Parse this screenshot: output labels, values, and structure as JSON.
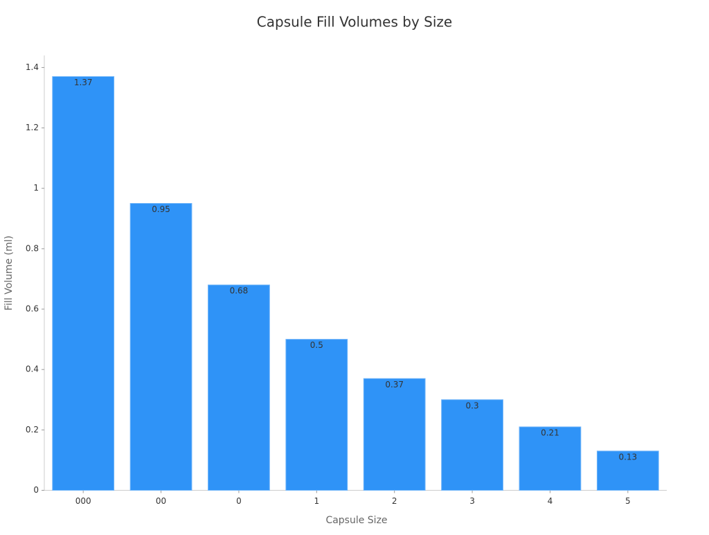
{
  "chart_data": {
    "type": "bar",
    "title": "Capsule Fill Volumes by Size",
    "x_label": "Capsule Size",
    "y_label": "Fill Volume (ml)",
    "categories": [
      "000",
      "00",
      "0",
      "1",
      "2",
      "3",
      "4",
      "5"
    ],
    "values": [
      1.37,
      0.95,
      0.68,
      0.5,
      0.37,
      0.3,
      0.21,
      0.13
    ],
    "color": "#2f93f7",
    "ylim": [
      0,
      1.44
    ],
    "yticks": [
      0,
      0.2,
      0.4,
      0.6,
      0.8,
      1,
      1.2,
      1.4
    ],
    "grid": false
  }
}
